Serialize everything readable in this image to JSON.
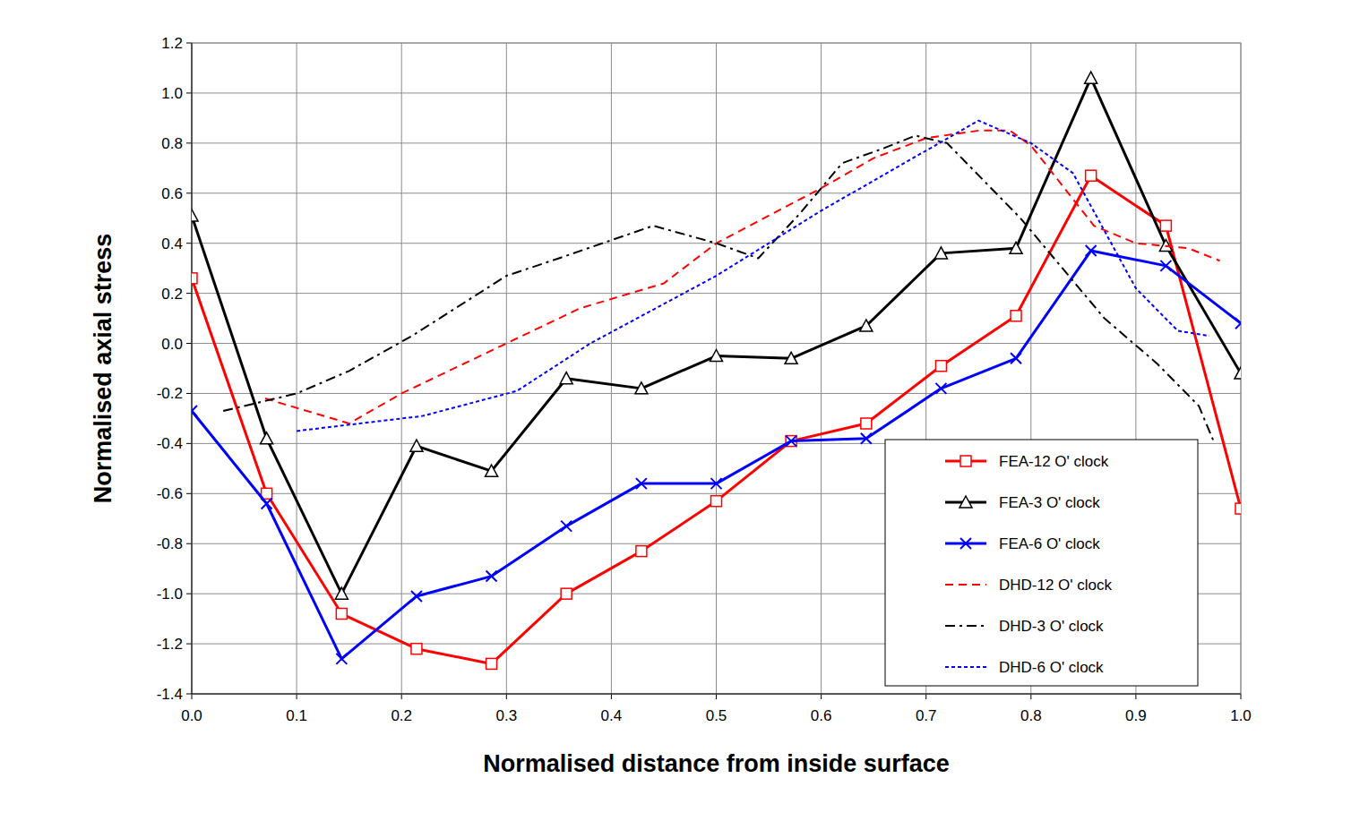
{
  "chart_data": {
    "type": "line",
    "x_label": "Normalised distance from inside surface",
    "y_label": "Normalised axial stress",
    "xlim": [
      0,
      1
    ],
    "ylim": [
      -1.4,
      1.2
    ],
    "xticks": [
      {
        "value": 0,
        "label": "0.0"
      },
      0.1,
      0.2,
      0.3,
      0.4,
      0.5,
      0.6,
      0.7,
      0.8,
      0.9,
      {
        "value": 1,
        "label": "1.0"
      }
    ],
    "yticks": [
      -1.4,
      -1.2,
      {
        "value": -1,
        "label": "-1.0"
      },
      -0.8,
      -0.6,
      -0.4,
      -0.2,
      {
        "value": 0,
        "label": "0.0"
      },
      0.2,
      0.4,
      0.6,
      0.8,
      {
        "value": 1,
        "label": "1.0"
      },
      1.2
    ],
    "grid": true,
    "legend": "lower right",
    "series": [
      {
        "name": "FEA-12 O' clock",
        "color": "#ff0000",
        "marker": "square",
        "line_style": "solid",
        "x": [
          0,
          0.0714,
          0.1429,
          0.2143,
          0.2857,
          0.3571,
          0.4286,
          0.5,
          0.5714,
          0.6429,
          0.7143,
          0.7857,
          0.8571,
          0.9286,
          1
        ],
        "values": [
          0.26,
          -0.6,
          -1.08,
          -1.22,
          -1.28,
          -1.0,
          -0.83,
          -0.63,
          -0.39,
          -0.32,
          -0.09,
          0.11,
          0.67,
          0.47,
          -0.66
        ]
      },
      {
        "name": "FEA-3 O' clock",
        "color": "#000000",
        "marker": "triangle",
        "line_style": "solid",
        "x": [
          0,
          0.0714,
          0.1429,
          0.2143,
          0.2857,
          0.3571,
          0.4286,
          0.5,
          0.5714,
          0.6429,
          0.7143,
          0.7857,
          0.8571,
          0.9286,
          1
        ],
        "values": [
          0.51,
          -0.38,
          -1.0,
          -0.41,
          -0.51,
          -0.14,
          -0.18,
          -0.05,
          -0.06,
          0.07,
          0.36,
          0.38,
          1.06,
          0.39,
          -0.12
        ]
      },
      {
        "name": "FEA-6 O' clock",
        "color": "#0000ff",
        "marker": "x",
        "line_style": "solid",
        "x": [
          0,
          0.0714,
          0.1429,
          0.2143,
          0.2857,
          0.3571,
          0.4286,
          0.5,
          0.5714,
          0.6429,
          0.7143,
          0.7857,
          0.8571,
          0.9286,
          1
        ],
        "values": [
          -0.27,
          -0.64,
          -1.26,
          -1.01,
          -0.93,
          -0.73,
          -0.56,
          -0.56,
          -0.39,
          -0.38,
          -0.18,
          -0.06,
          0.37,
          0.31,
          0.08
        ]
      },
      {
        "name": "DHD-12 O' clock",
        "color": "#ff0000",
        "marker": "none",
        "line_style": "dashed",
        "x": [
          0.07,
          0.15,
          0.2,
          0.3,
          0.37,
          0.45,
          0.5,
          0.6,
          0.65,
          0.7,
          0.75,
          0.78,
          0.8,
          0.86,
          0.9,
          0.95,
          0.98
        ],
        "values": [
          -0.22,
          -0.32,
          -0.2,
          0.0,
          0.14,
          0.24,
          0.4,
          0.62,
          0.74,
          0.82,
          0.85,
          0.85,
          0.79,
          0.47,
          0.4,
          0.38,
          0.33
        ]
      },
      {
        "name": "DHD-3 O' clock",
        "color": "#000000",
        "marker": "none",
        "line_style": "dashdot",
        "x": [
          0.03,
          0.1,
          0.15,
          0.21,
          0.3,
          0.35,
          0.44,
          0.5,
          0.54,
          0.58,
          0.62,
          0.66,
          0.69,
          0.72,
          0.79,
          0.87,
          0.92,
          0.96,
          0.975
        ],
        "values": [
          -0.27,
          -0.2,
          -0.11,
          0.03,
          0.27,
          0.34,
          0.47,
          0.4,
          0.34,
          0.52,
          0.72,
          0.78,
          0.83,
          0.8,
          0.5,
          0.1,
          -0.08,
          -0.25,
          -0.4
        ]
      },
      {
        "name": "DHD-6 O' clock",
        "color": "#0000ff",
        "marker": "none",
        "line_style": "dotted",
        "x": [
          0.1,
          0.16,
          0.22,
          0.31,
          0.38,
          0.5,
          0.6,
          0.65,
          0.75,
          0.8,
          0.84,
          0.9,
          0.94,
          0.97
        ],
        "values": [
          -0.35,
          -0.32,
          -0.29,
          -0.19,
          0.0,
          0.27,
          0.53,
          0.65,
          0.89,
          0.8,
          0.68,
          0.22,
          0.05,
          0.03
        ]
      }
    ]
  }
}
